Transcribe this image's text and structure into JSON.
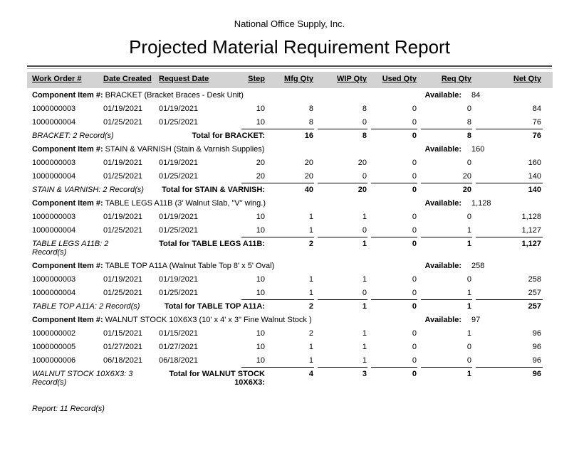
{
  "colors": {
    "header_band": "#d3d3d3",
    "rule_dark": "#4a4a4a",
    "rule_light": "#b3b3b3"
  },
  "header": {
    "company": "National Office Supply, Inc.",
    "title": "Projected Material Requirement Report"
  },
  "table": {
    "component_label": "Component Item #:",
    "available_label": "Available:",
    "columns": [
      "Work Order #",
      "Date Created",
      "Request Date",
      "Step",
      "Mfg Qty",
      "WIP Qty",
      "Used Qty",
      "Req Qty",
      "Net Qty"
    ],
    "sections": [
      {
        "item": "BRACKET (Bracket Braces - Desk Unit)",
        "available": "84",
        "rows": [
          [
            "1000000003",
            "01/19/2021",
            "01/19/2021",
            "10",
            "8",
            "8",
            "0",
            "0",
            "84"
          ],
          [
            "1000000004",
            "01/25/2021",
            "01/25/2021",
            "10",
            "8",
            "0",
            "0",
            "8",
            "76"
          ]
        ],
        "records_label": "BRACKET: 2 Record(s)",
        "total_label": "Total for BRACKET:",
        "totals": [
          "16",
          "8",
          "0",
          "8",
          "76"
        ]
      },
      {
        "item": "STAIN & VARNISH (Stain & Varnish Supplies)",
        "available": "160",
        "rows": [
          [
            "1000000003",
            "01/19/2021",
            "01/19/2021",
            "20",
            "20",
            "20",
            "0",
            "0",
            "160"
          ],
          [
            "1000000004",
            "01/25/2021",
            "01/25/2021",
            "20",
            "20",
            "0",
            "0",
            "20",
            "140"
          ]
        ],
        "records_label": "STAIN & VARNISH: 2 Record(s)",
        "total_label": "Total for STAIN & VARNISH:",
        "totals": [
          "40",
          "20",
          "0",
          "20",
          "140"
        ]
      },
      {
        "item": "TABLE LEGS A11B (3' Walnut Slab, \"V\" wing.)",
        "available": "1,128",
        "rows": [
          [
            "1000000003",
            "01/19/2021",
            "01/19/2021",
            "10",
            "1",
            "1",
            "0",
            "0",
            "1,128"
          ],
          [
            "1000000004",
            "01/25/2021",
            "01/25/2021",
            "10",
            "1",
            "0",
            "0",
            "1",
            "1,127"
          ]
        ],
        "records_label": "TABLE LEGS A11B: 2 Record(s)",
        "total_label": "Total for TABLE LEGS A11B:",
        "totals": [
          "2",
          "1",
          "0",
          "1",
          "1,127"
        ]
      },
      {
        "item": "TABLE TOP A11A (Walnut Table Top 8' x 5' Oval)",
        "available": "258",
        "rows": [
          [
            "1000000003",
            "01/19/2021",
            "01/19/2021",
            "10",
            "1",
            "1",
            "0",
            "0",
            "258"
          ],
          [
            "1000000004",
            "01/25/2021",
            "01/25/2021",
            "10",
            "1",
            "0",
            "0",
            "1",
            "257"
          ]
        ],
        "records_label": "TABLE TOP A11A: 2 Record(s)",
        "total_label": "Total for TABLE TOP A11A:",
        "totals": [
          "2",
          "1",
          "0",
          "1",
          "257"
        ]
      },
      {
        "item": "WALNUT STOCK 10X6X3 (10' x 4' x 3\" Fine Walnut Stock )",
        "available": "97",
        "rows": [
          [
            "1000000002",
            "01/15/2021",
            "01/15/2021",
            "10",
            "2",
            "1",
            "0",
            "1",
            "96"
          ],
          [
            "1000000005",
            "01/27/2021",
            "01/27/2021",
            "10",
            "1",
            "1",
            "0",
            "0",
            "96"
          ],
          [
            "1000000006",
            "06/18/2021",
            "06/18/2021",
            "10",
            "1",
            "1",
            "0",
            "0",
            "96"
          ]
        ],
        "records_label": "WALNUT STOCK 10X6X3: 3 Record(s)",
        "total_label": "Total for WALNUT STOCK 10X6X3:",
        "totals": [
          "4",
          "3",
          "0",
          "1",
          "96"
        ]
      }
    ]
  },
  "footer": {
    "record_count": "Report: 11 Record(s)"
  }
}
